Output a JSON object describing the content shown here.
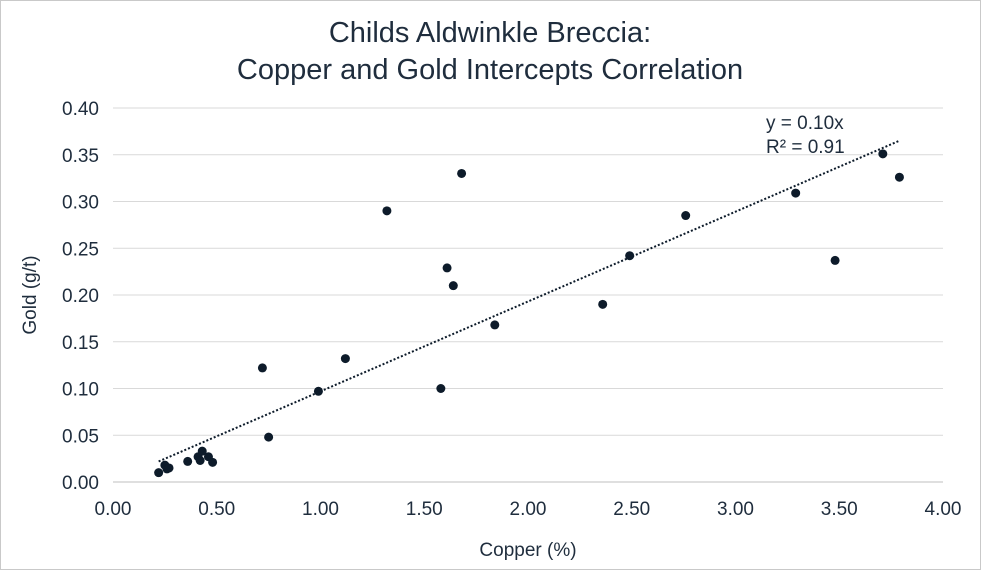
{
  "chart_data": {
    "type": "scatter",
    "title_lines": [
      "Childs Aldwinkle Breccia:",
      "Copper and Gold Intercepts Correlation"
    ],
    "xlabel": "Copper (%)",
    "ylabel": "Gold (g/t)",
    "xlim": [
      0,
      4
    ],
    "ylim": [
      0,
      0.4
    ],
    "x_ticks": [
      "0.00",
      "0.50",
      "1.00",
      "1.50",
      "2.00",
      "2.50",
      "3.00",
      "3.50",
      "4.00"
    ],
    "y_ticks": [
      "0.00",
      "0.05",
      "0.10",
      "0.15",
      "0.20",
      "0.25",
      "0.30",
      "0.35",
      "0.40"
    ],
    "grid": "horizontal",
    "legend": "none",
    "colors": {
      "marker": "#0d1b2a",
      "trendline": "#0d1b2a",
      "grid": "#d9d9d9"
    },
    "points": [
      {
        "x": 0.22,
        "y": 0.01
      },
      {
        "x": 0.25,
        "y": 0.018
      },
      {
        "x": 0.26,
        "y": 0.014
      },
      {
        "x": 0.27,
        "y": 0.015
      },
      {
        "x": 0.36,
        "y": 0.022
      },
      {
        "x": 0.41,
        "y": 0.027
      },
      {
        "x": 0.42,
        "y": 0.023
      },
      {
        "x": 0.43,
        "y": 0.033
      },
      {
        "x": 0.46,
        "y": 0.027
      },
      {
        "x": 0.48,
        "y": 0.021
      },
      {
        "x": 0.72,
        "y": 0.122
      },
      {
        "x": 0.75,
        "y": 0.048
      },
      {
        "x": 0.99,
        "y": 0.097
      },
      {
        "x": 1.12,
        "y": 0.132
      },
      {
        "x": 1.32,
        "y": 0.29
      },
      {
        "x": 1.58,
        "y": 0.1
      },
      {
        "x": 1.61,
        "y": 0.229
      },
      {
        "x": 1.64,
        "y": 0.21
      },
      {
        "x": 1.68,
        "y": 0.33
      },
      {
        "x": 1.84,
        "y": 0.168
      },
      {
        "x": 2.36,
        "y": 0.19
      },
      {
        "x": 2.49,
        "y": 0.242
      },
      {
        "x": 2.76,
        "y": 0.285
      },
      {
        "x": 3.29,
        "y": 0.309
      },
      {
        "x": 3.48,
        "y": 0.237
      },
      {
        "x": 3.71,
        "y": 0.351
      },
      {
        "x": 3.79,
        "y": 0.326
      }
    ],
    "trendline": {
      "x_range": [
        0.22,
        3.79
      ],
      "y_range": [
        0.022,
        0.365
      ]
    },
    "equation_lines": [
      "y = 0.10x",
      "R² = 0.91"
    ]
  }
}
